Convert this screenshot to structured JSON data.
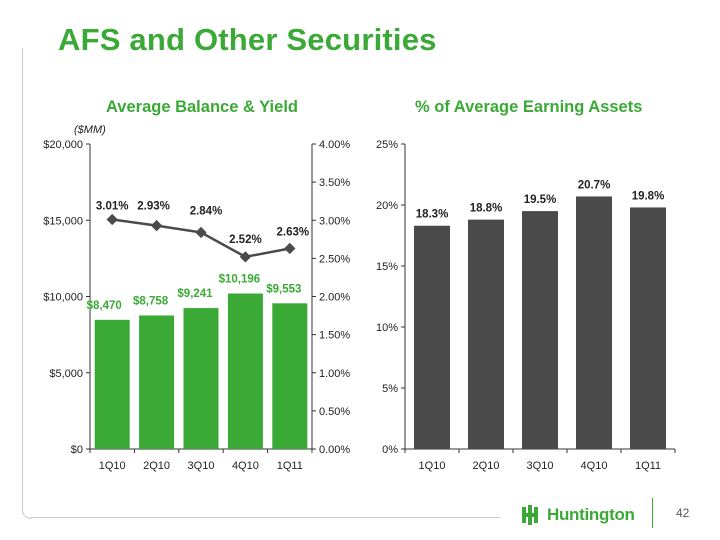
{
  "slide": {
    "title": "AFS and Other Securities",
    "page_number": "42",
    "logo_text": "Huntington"
  },
  "colors": {
    "accent": "#3aa935",
    "bar_green": "#3aa935",
    "bar_gray": "#4a4a4a",
    "line": "#4a4a4a"
  },
  "chart_data": [
    {
      "type": "bar+line",
      "title": "Average Balance & Yield",
      "units_note": "($MM)",
      "categories": [
        "1Q10",
        "2Q10",
        "3Q10",
        "4Q10",
        "1Q11"
      ],
      "series": [
        {
          "name": "Average Balance",
          "kind": "bar",
          "axis": "left",
          "values": [
            8470,
            8758,
            9241,
            10196,
            9553
          ],
          "labels": [
            "$8,470",
            "$8,758",
            "$9,241",
            "$10,196",
            "$9,553"
          ]
        },
        {
          "name": "Yield",
          "kind": "line",
          "axis": "right",
          "values": [
            3.01,
            2.93,
            2.84,
            2.52,
            2.63
          ],
          "labels": [
            "3.01%",
            "2.93%",
            "2.84%",
            "2.52%",
            "2.63%"
          ]
        }
      ],
      "ylim_left": [
        0,
        20000
      ],
      "yticks_left": [
        "$0",
        "$5,000",
        "$10,000",
        "$15,000",
        "$20,000"
      ],
      "ylim_right": [
        0,
        4.0
      ],
      "yticks_right": [
        "0.00%",
        "0.50%",
        "1.00%",
        "1.50%",
        "2.00%",
        "2.50%",
        "3.00%",
        "3.50%",
        "4.00%"
      ]
    },
    {
      "type": "bar",
      "title": "% of Average Earning Assets",
      "categories": [
        "1Q10",
        "2Q10",
        "3Q10",
        "4Q10",
        "1Q11"
      ],
      "values": [
        18.3,
        18.8,
        19.5,
        20.7,
        19.8
      ],
      "labels": [
        "18.3%",
        "18.8%",
        "19.5%",
        "20.7%",
        "19.8%"
      ],
      "ylim": [
        0,
        25
      ],
      "yticks": [
        "0%",
        "5%",
        "10%",
        "15%",
        "20%",
        "25%"
      ]
    }
  ]
}
